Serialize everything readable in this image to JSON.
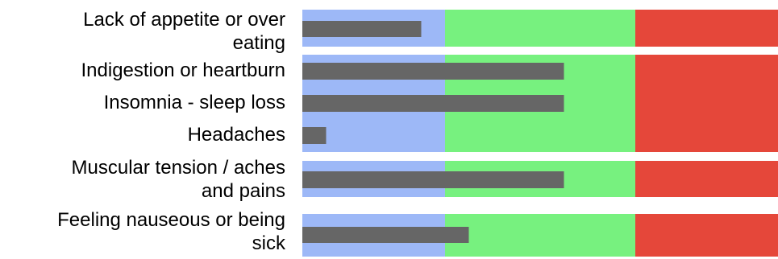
{
  "chart_data": {
    "type": "bar",
    "orientation": "horizontal",
    "categories": [
      [
        "Lack of appetite or over",
        "eating"
      ],
      [
        "Indigestion or heartburn"
      ],
      [
        "Insomnia - sleep loss"
      ],
      [
        "Headaches"
      ],
      [
        "Muscular tension / aches",
        "and pains"
      ],
      [
        "Feeling nauseous or being",
        "sick"
      ]
    ],
    "values": [
      2.5,
      5.5,
      5.5,
      0.5,
      5.5,
      3.5
    ],
    "xlim": [
      0,
      10
    ],
    "bands": [
      {
        "from": 0,
        "to": 3,
        "color": "#9db8f7"
      },
      {
        "from": 3,
        "to": 7,
        "color": "#77f17f"
      },
      {
        "from": 7,
        "to": 10,
        "color": "#e5473a"
      }
    ],
    "bar_color": "#666666",
    "title": "",
    "xlabel": "",
    "ylabel": "",
    "grid": false,
    "legend": "none"
  }
}
